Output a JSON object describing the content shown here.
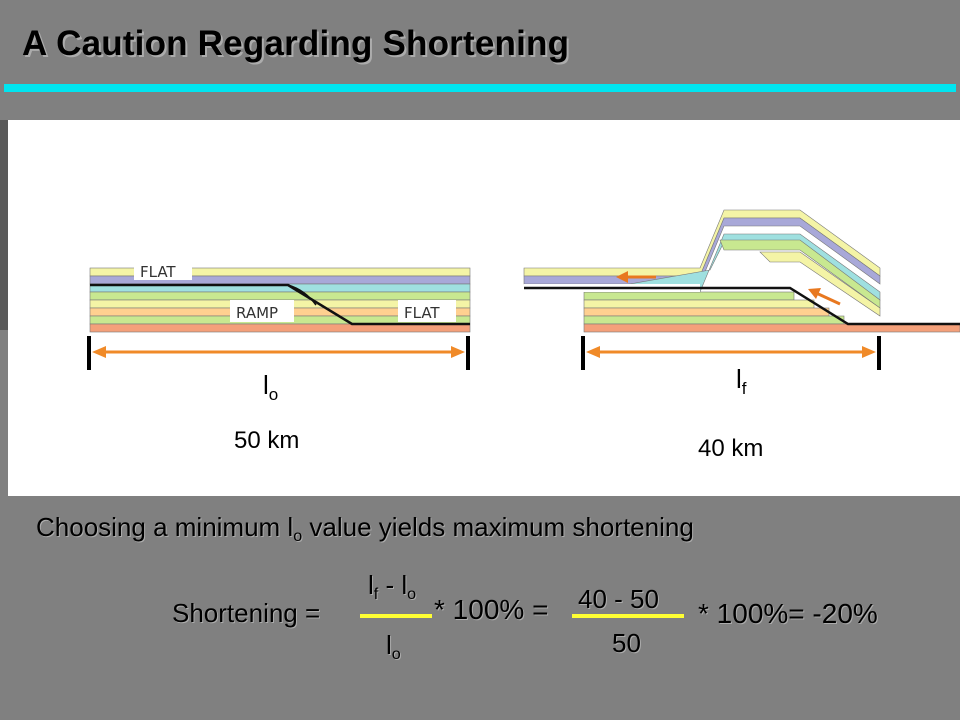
{
  "slide": {
    "title": "A Caution Regarding Shortening"
  },
  "diagram": {
    "left": {
      "labels": {
        "flat_top": "FLAT",
        "ramp": "RAMP",
        "flat_bottom": "FLAT"
      },
      "length_symbol": {
        "base": "l",
        "sub": "o"
      },
      "length_value": "50 km"
    },
    "right": {
      "length_symbol": {
        "base": "l",
        "sub": "f"
      },
      "length_value": "40 km"
    },
    "colors": {
      "measure_arrow": "#f08a28",
      "layer_colors": [
        "#f4f4a6",
        "#a8a8d8",
        "#9fe0e0",
        "#c8e890",
        "#ffd090",
        "#f4a07a"
      ]
    }
  },
  "caption": {
    "before": "Choosing a minimum l",
    "sub": "o",
    "after": " value yields maximum shortening"
  },
  "equation": {
    "lhs": "Shortening =",
    "num_l1": "l",
    "num_s1": "f",
    "num_mid": " - l",
    "num_s2": "o",
    "den_l": "l",
    "den_s": "o",
    "times1": "* 100% =",
    "num2": "40 - 50",
    "den2": "50",
    "result": "* 100%= -20%"
  }
}
